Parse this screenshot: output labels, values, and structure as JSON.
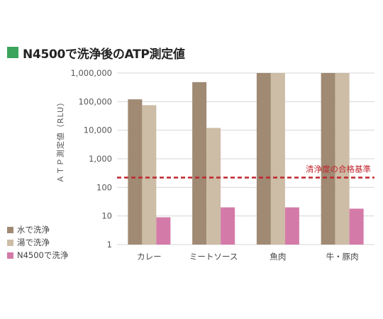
{
  "title": "N4500で洗浄後のATP測定値",
  "title_marker_color": "#3ba55c",
  "legend": [
    {
      "label": "水で洗浄",
      "color": "#a08a74"
    },
    {
      "label": "湯で洗浄",
      "color": "#cdbca6"
    },
    {
      "label": "N4500で洗浄",
      "color": "#d47aa9"
    }
  ],
  "chart_data": {
    "type": "bar",
    "scale": "log",
    "ylabel": "ＡＴＰ測定値（RLU）",
    "ylim": [
      1,
      1000000
    ],
    "yticks": [
      1,
      10,
      100,
      1000,
      10000,
      100000,
      1000000
    ],
    "ytick_labels": [
      "1",
      "10",
      "100",
      "1,000",
      "10,000",
      "100,000",
      "1,000,000"
    ],
    "grid": true,
    "categories": [
      "カレー",
      "ミートソース",
      "魚肉",
      "牛・豚肉"
    ],
    "series": [
      {
        "name": "水で洗浄",
        "color": "#a08a74",
        "values": [
          120000,
          480000,
          1000000,
          1000000
        ]
      },
      {
        "name": "湯で洗浄",
        "color": "#cdbca6",
        "values": [
          75000,
          12000,
          1000000,
          1000000
        ]
      },
      {
        "name": "N4500で洗浄",
        "color": "#d47aa9",
        "values": [
          9,
          20,
          20,
          18
        ]
      }
    ],
    "reference_line": {
      "value": 220,
      "label": "清浄度の合格基準",
      "color": "#c0262e"
    }
  }
}
